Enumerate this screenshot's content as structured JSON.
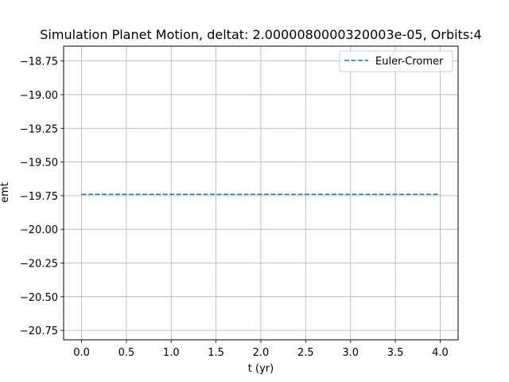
{
  "chart_data": {
    "type": "line",
    "title": "Simulation Planet Motion, deltat: 2.0000080000320003e-05, Orbits:4",
    "xlabel": "t (yr)",
    "ylabel": "emt",
    "xlim": [
      -0.2,
      4.2
    ],
    "ylim": [
      -20.82,
      -18.64
    ],
    "xticks": [
      0.0,
      0.5,
      1.0,
      1.5,
      2.0,
      2.5,
      3.0,
      3.5,
      4.0
    ],
    "xtick_labels": [
      "0.0",
      "0.5",
      "1.0",
      "1.5",
      "2.0",
      "2.5",
      "3.0",
      "3.5",
      "4.0"
    ],
    "yticks": [
      -18.75,
      -19.0,
      -19.25,
      -19.5,
      -19.75,
      -20.0,
      -20.25,
      -20.5,
      -20.75
    ],
    "ytick_labels": [
      "−18.75",
      "−19.00",
      "−19.25",
      "−19.50",
      "−19.75",
      "−20.00",
      "−20.25",
      "−20.50",
      "−20.75"
    ],
    "grid": true,
    "legend_position": "upper right",
    "series": [
      {
        "name": "Euler-Cromer",
        "line_style": "dashed",
        "color": "#1f77b4",
        "x": [
          0.0,
          4.0
        ],
        "y": [
          -19.74,
          -19.74
        ]
      }
    ]
  }
}
